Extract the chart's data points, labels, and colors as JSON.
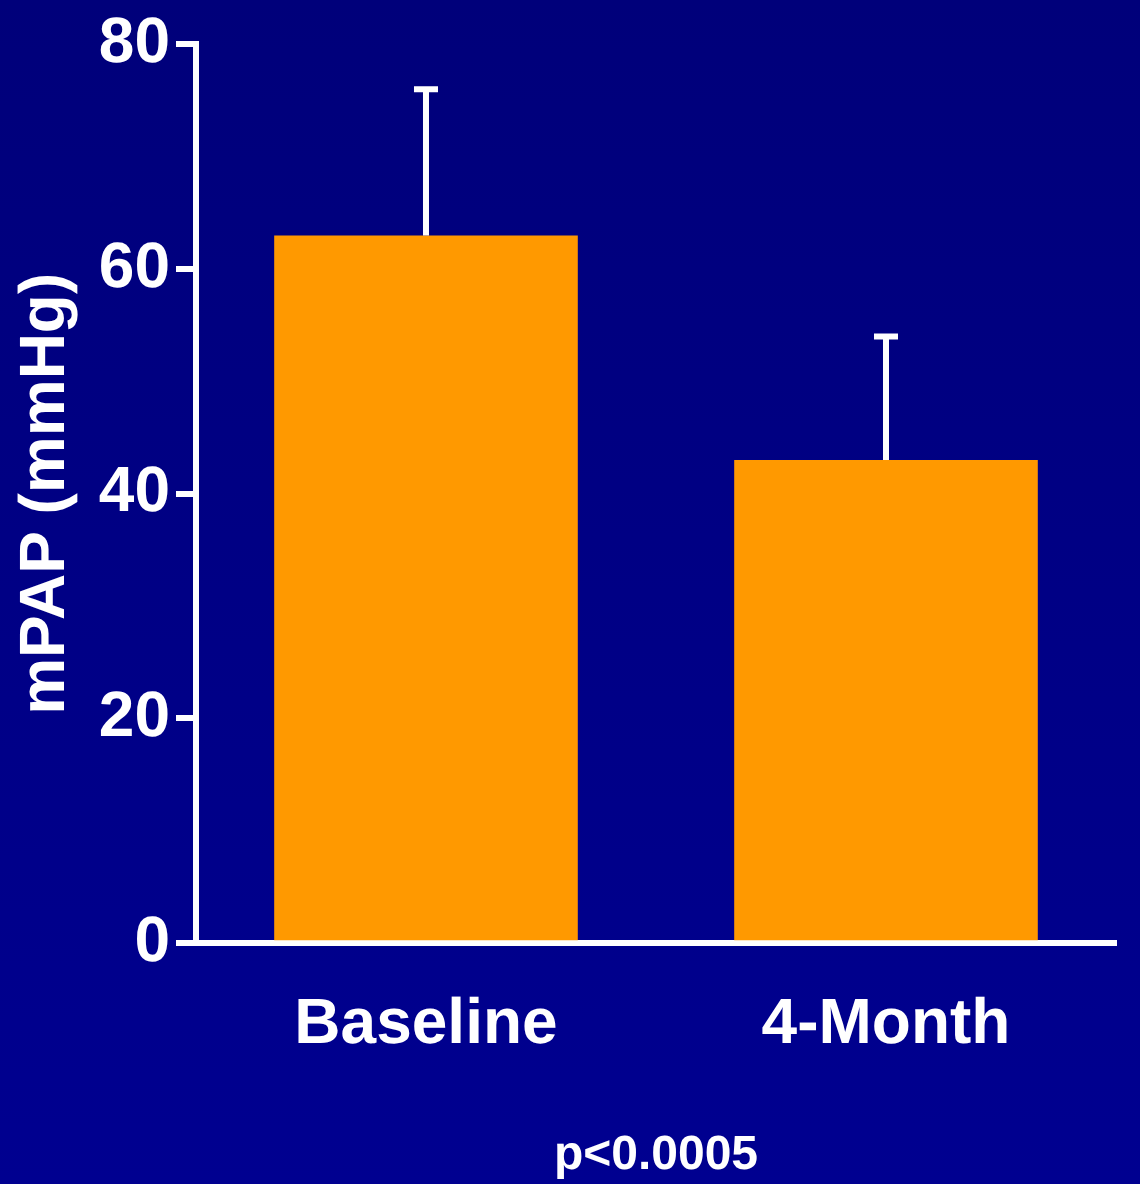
{
  "chart_data": {
    "type": "bar",
    "ylabel": "mPAP (mmHg)",
    "categories": [
      "Baseline",
      "4-Month"
    ],
    "values": [
      63,
      43
    ],
    "color": "#ff9900",
    "errors": [
      [
        63,
        76
      ],
      [
        43,
        54
      ]
    ],
    "ylim": [
      0,
      80
    ],
    "yticks": [
      0,
      20,
      40,
      60,
      80
    ],
    "grid": false,
    "legend": false,
    "annotations": [
      "p<0.0005"
    ]
  }
}
